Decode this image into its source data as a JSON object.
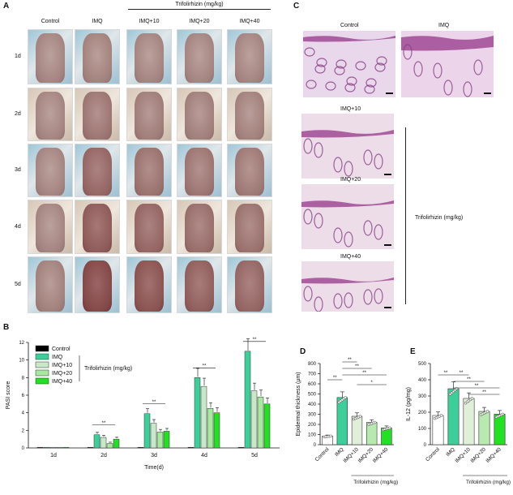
{
  "panelA": {
    "letter": "A",
    "columns": [
      "Control",
      "IMQ",
      "IMQ+10",
      "IMQ+20",
      "IMQ+40"
    ],
    "group_title": "Trifolirhizin (mg/kg)",
    "rows": [
      "1d",
      "2d",
      "3d",
      "4d",
      "5d"
    ],
    "redness": [
      [
        0.05,
        0.08,
        0.05,
        0.05,
        0.05
      ],
      [
        0.05,
        0.25,
        0.15,
        0.12,
        0.1
      ],
      [
        0.05,
        0.45,
        0.3,
        0.25,
        0.2
      ],
      [
        0.05,
        0.6,
        0.45,
        0.35,
        0.3
      ],
      [
        0.1,
        0.85,
        0.7,
        0.55,
        0.45
      ]
    ]
  },
  "panelB": {
    "letter": "B",
    "chart_data": {
      "type": "bar",
      "ylabel": "PASI score",
      "xlabel": "Time(d)",
      "categories": [
        "1d",
        "2d",
        "3d",
        "4d",
        "5d"
      ],
      "ylim": [
        0,
        12
      ],
      "yticks": [
        0,
        2,
        4,
        6,
        8,
        10,
        12
      ],
      "legend_title": "Trifolirhizin (mg/kg)",
      "series": [
        {
          "name": "Control",
          "color": "#000000",
          "values": [
            0,
            0,
            0,
            0,
            0
          ]
        },
        {
          "name": "IMQ",
          "color": "#3ccf9a",
          "values": [
            0,
            1.5,
            3.9,
            8.0,
            11.0
          ]
        },
        {
          "name": "IMQ+10",
          "color": "#c8e8c8",
          "values": [
            0,
            1.2,
            2.8,
            7.0,
            6.5
          ]
        },
        {
          "name": "IMQ+20",
          "color": "#a8e8a0",
          "values": [
            0,
            0.5,
            1.8,
            4.5,
            5.8
          ]
        },
        {
          "name": "IMQ+40",
          "color": "#22e022",
          "values": [
            0,
            1.0,
            1.9,
            4.0,
            5.0
          ]
        }
      ],
      "sig": [
        "*",
        "**",
        "**",
        "**",
        "**"
      ]
    }
  },
  "panelC": {
    "letter": "C",
    "labels": [
      "Control",
      "IMQ",
      "IMQ+10",
      "IMQ+20",
      "IMQ+40"
    ],
    "group_title": "Trifolirhizin (mg/kg)"
  },
  "panelD": {
    "letter": "D",
    "chart_data": {
      "type": "bar",
      "ylabel": "Epidermal thickness (μm)",
      "categories": [
        "Control",
        "IMQ",
        "IMQ+10",
        "IMQ+20",
        "IMQ+40"
      ],
      "values": [
        85,
        465,
        280,
        220,
        165
      ],
      "ylim": [
        0,
        800
      ],
      "yticks": [
        0,
        100,
        200,
        300,
        400,
        500,
        600,
        700,
        800
      ],
      "colors": [
        "#ffffff",
        "#3ccf9a",
        "#e0f0d8",
        "#b8eab0",
        "#22e022"
      ],
      "group_title": "Trifolirhizin (mg/kg)",
      "sig": [
        "**",
        "**",
        "**",
        "**",
        "*"
      ]
    }
  },
  "panelE": {
    "letter": "E",
    "chart_data": {
      "type": "bar",
      "ylabel": "IL-12 (pg/mg)",
      "categories": [
        "Control",
        "IMQ",
        "IMQ+10",
        "IMQ+20",
        "IMQ+40"
      ],
      "values": [
        180,
        345,
        285,
        205,
        188
      ],
      "ylim": [
        0,
        500
      ],
      "yticks": [
        0,
        100,
        200,
        300,
        400,
        500
      ],
      "colors": [
        "#ffffff",
        "#3ccf9a",
        "#e0f0d8",
        "#b8eab0",
        "#22e022"
      ],
      "group_title": "Trifolirhizin (mg/kg)",
      "sig": [
        "**",
        "**",
        "**",
        "**",
        "**"
      ]
    }
  }
}
